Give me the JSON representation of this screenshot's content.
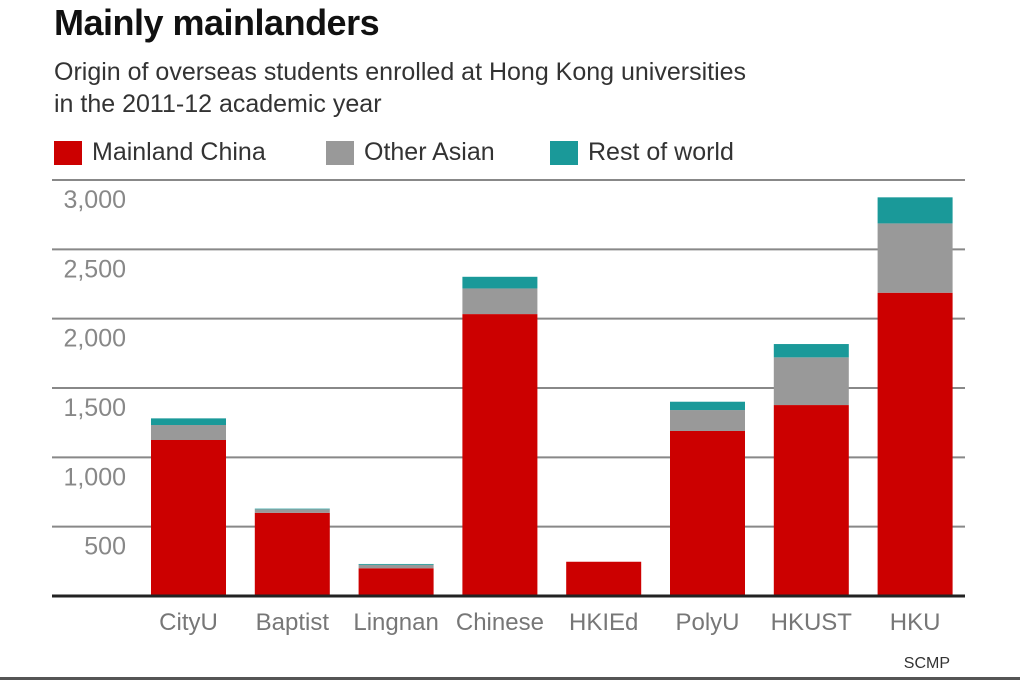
{
  "header": {
    "title": "Mainly mainlanders",
    "subtitle_line1": "Origin of overseas students enrolled at Hong Kong universities",
    "subtitle_line2": "in the 2011-12 academic year"
  },
  "credit": "SCMP",
  "chart_data": {
    "type": "bar",
    "stacked": true,
    "title": "Mainly mainlanders",
    "subtitle": "Origin of overseas students enrolled at Hong Kong universities in the 2011-12 academic year",
    "categories": [
      "CityU",
      "Baptist",
      "Lingnan",
      "Chinese",
      "HKIEd",
      "PolyU",
      "HKUST",
      "HKU"
    ],
    "series": [
      {
        "name": "Mainland China",
        "color": "#cc0000",
        "values": [
          1125,
          600,
          200,
          2033,
          247,
          1190,
          1377,
          2187
        ]
      },
      {
        "name": "Other Asian",
        "color": "#999999",
        "values": [
          108,
          25,
          25,
          185,
          0,
          151,
          344,
          500
        ]
      },
      {
        "name": "Rest of world",
        "color": "#1a9999",
        "values": [
          48,
          5,
          6,
          84,
          0,
          60,
          96,
          188
        ]
      }
    ],
    "ylim": [
      0,
      3000
    ],
    "yticks": [
      500,
      1000,
      1500,
      2000,
      2500,
      3000
    ],
    "ytick_labels": [
      "500",
      "1,000",
      "1,500",
      "2,000",
      "2,500",
      "3,000"
    ],
    "grid": true,
    "legend": "top-left"
  }
}
